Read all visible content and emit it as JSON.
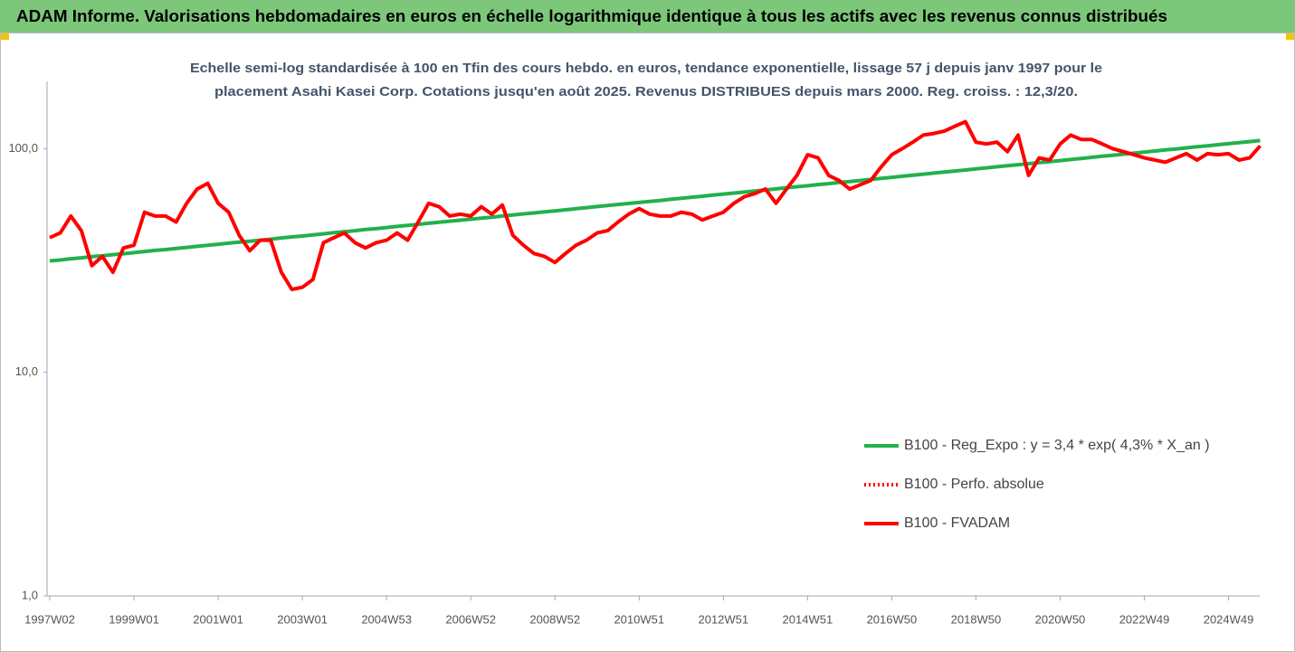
{
  "header": {
    "title": "ADAM Informe. Valorisations hebdomadaires en euros en échelle logarithmique identique à tous les actifs avec les revenus connus distribués"
  },
  "chart_data": {
    "type": "line",
    "title": [
      "Echelle semi-log standardisée à 100 en Tfin des cours hebdo. en euros, tendance exponentielle, lissage 57 j depuis janv 1997 pour le",
      "placement Asahi Kasei Corp. Cotations jusqu'en août 2025. Revenus DISTRIBUES depuis mars 2000. Reg. croiss. : 12,3/20."
    ],
    "log_scale": true,
    "grid": false,
    "legend": "lower right",
    "ylim": [
      1,
      200
    ],
    "yticks": [
      {
        "value": 1,
        "label": "1,0"
      },
      {
        "value": 10,
        "label": "10,0"
      },
      {
        "value": 100,
        "label": "100,0"
      }
    ],
    "categories": [
      "1997W02",
      null,
      null,
      null,
      null,
      null,
      null,
      null,
      "1999W01",
      null,
      null,
      null,
      null,
      null,
      null,
      null,
      "2001W01",
      null,
      null,
      null,
      null,
      null,
      null,
      null,
      "2003W01",
      null,
      null,
      null,
      null,
      null,
      null,
      null,
      "2004W53",
      null,
      null,
      null,
      null,
      null,
      null,
      null,
      "2006W52",
      null,
      null,
      null,
      null,
      null,
      null,
      null,
      "2008W52",
      null,
      null,
      null,
      null,
      null,
      null,
      null,
      "2010W51",
      null,
      null,
      null,
      null,
      null,
      null,
      null,
      "2012W51",
      null,
      null,
      null,
      null,
      null,
      null,
      null,
      "2014W51",
      null,
      null,
      null,
      null,
      null,
      null,
      null,
      "2016W50",
      null,
      null,
      null,
      null,
      null,
      null,
      null,
      "2018W50",
      null,
      null,
      null,
      null,
      null,
      null,
      null,
      "2020W50",
      null,
      null,
      null,
      null,
      null,
      null,
      null,
      "2022W49",
      null,
      null,
      null,
      null,
      null,
      null,
      null,
      "2024W49",
      null,
      null,
      null
    ],
    "series": [
      {
        "name": "B100 - Reg_Expo : y = 3,4 * exp( 4,3% *  X_an )",
        "color": "#22b14c",
        "style": "solid",
        "values": [
          31.5,
          31.8,
          32.2,
          32.5,
          32.9,
          33.2,
          33.6,
          33.9,
          34.3,
          34.7,
          35.1,
          35.4,
          35.8,
          36.2,
          36.6,
          37.0,
          37.4,
          37.8,
          38.2,
          38.6,
          39.0,
          39.4,
          39.9,
          40.3,
          40.7,
          41.2,
          41.6,
          42.1,
          42.5,
          43.0,
          43.5,
          43.9,
          44.4,
          44.9,
          45.4,
          45.9,
          46.4,
          46.9,
          47.4,
          47.9,
          48.4,
          48.9,
          49.4,
          50.0,
          50.5,
          51.1,
          51.6,
          52.2,
          52.7,
          53.3,
          53.9,
          54.5,
          55.1,
          55.7,
          56.3,
          56.9,
          57.5,
          58.1,
          58.7,
          59.4,
          60.0,
          60.7,
          61.3,
          62.0,
          62.7,
          63.3,
          64.0,
          64.7,
          65.4,
          66.1,
          66.9,
          67.6,
          68.3,
          69.1,
          69.8,
          70.6,
          71.3,
          72.1,
          72.9,
          73.7,
          74.5,
          75.3,
          76.1,
          76.9,
          77.8,
          78.6,
          79.5,
          80.3,
          81.2,
          82.1,
          83.0,
          83.9,
          84.8,
          85.7,
          86.6,
          87.6,
          88.5,
          89.5,
          90.5,
          91.5,
          92.5,
          93.5,
          94.5,
          95.5,
          96.6,
          97.6,
          98.7,
          99.8,
          100.9,
          102.0,
          103.1,
          104.2,
          105.3,
          106.5,
          107.6,
          108.8
        ]
      },
      {
        "name": "B100 - Perfo. absolue",
        "color": "#ff0000",
        "style": "dotted",
        "values": [
          40,
          42,
          50,
          43,
          30,
          33,
          28,
          36,
          37,
          52,
          50,
          50,
          47,
          57,
          66,
          70,
          57,
          52,
          41,
          35,
          39,
          39,
          28,
          23.5,
          24,
          26,
          38,
          40,
          42,
          38,
          36,
          38,
          39,
          42,
          39,
          47,
          57,
          55,
          50,
          51,
          50,
          55,
          51,
          56,
          41,
          37,
          34,
          33,
          31,
          34,
          37,
          39,
          42,
          43,
          47,
          51,
          54,
          51,
          50,
          50,
          52,
          51,
          48,
          50,
          52,
          57,
          61,
          63,
          66,
          57,
          66,
          76,
          94,
          91,
          76,
          72,
          66,
          69,
          72,
          83,
          94,
          100,
          107,
          115,
          117,
          120,
          126,
          132,
          107,
          105,
          107,
          97,
          115,
          76,
          91,
          89,
          105,
          115,
          110,
          110,
          105,
          100,
          97,
          94,
          91,
          89,
          87,
          91,
          95,
          89,
          95,
          94,
          95,
          89,
          91,
          103
        ]
      },
      {
        "name": "B100 - FVADAM",
        "color": "#ff0000",
        "style": "solid",
        "values": [
          40,
          42,
          50,
          43,
          30,
          33,
          28,
          36,
          37,
          52,
          50,
          50,
          47,
          57,
          66,
          70,
          57,
          52,
          41,
          35,
          39,
          39,
          28,
          23.5,
          24,
          26,
          38,
          40,
          42,
          38,
          36,
          38,
          39,
          42,
          39,
          47,
          57,
          55,
          50,
          51,
          50,
          55,
          51,
          56,
          41,
          37,
          34,
          33,
          31,
          34,
          37,
          39,
          42,
          43,
          47,
          51,
          54,
          51,
          50,
          50,
          52,
          51,
          48,
          50,
          52,
          57,
          61,
          63,
          66,
          57,
          66,
          76,
          94,
          91,
          76,
          72,
          66,
          69,
          72,
          83,
          94,
          100,
          107,
          115,
          117,
          120,
          126,
          132,
          107,
          105,
          107,
          97,
          115,
          76,
          91,
          89,
          105,
          115,
          110,
          110,
          105,
          100,
          97,
          94,
          91,
          89,
          87,
          91,
          95,
          89,
          95,
          94,
          95,
          89,
          91,
          103
        ]
      }
    ]
  }
}
